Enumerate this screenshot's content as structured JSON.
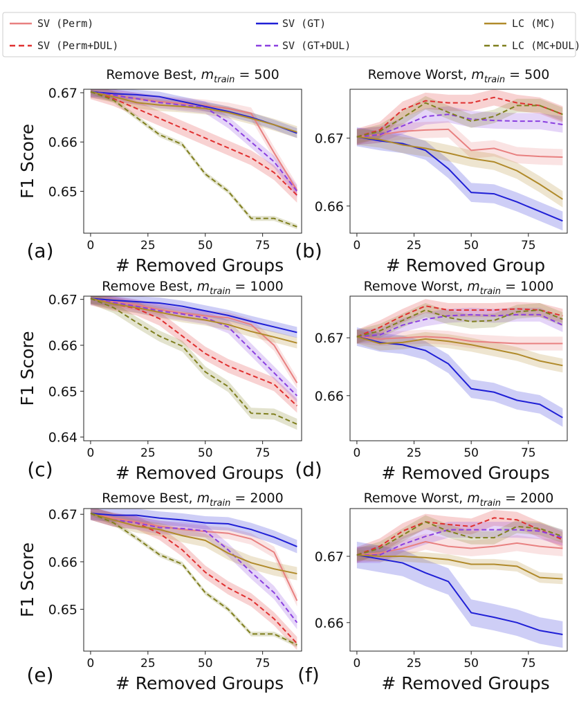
{
  "legend": [
    {
      "label": "SV (Perm)",
      "color": "#e88080",
      "dash": false
    },
    {
      "label": "SV (Perm+DUL)",
      "color": "#e03030",
      "dash": true
    },
    {
      "label": "SV (GT)",
      "color": "#1f1fd6",
      "dash": false
    },
    {
      "label": "SV (GT+DUL)",
      "color": "#8a3fe0",
      "dash": true
    },
    {
      "label": "LC (MC)",
      "color": "#b08a2a",
      "dash": false
    },
    {
      "label": "LC (MC+DUL)",
      "color": "#7f7f1e",
      "dash": true
    }
  ],
  "chart_data": [
    {
      "type": "line",
      "panel": "(a)",
      "title": "Remove Best, m_train = 500",
      "title_prefix": "Remove Best,",
      "title_m": "m",
      "title_sub": "train",
      "title_suffix": " = 500",
      "xlabel": "# Removed Groups",
      "ylabel": "F1 Score",
      "xlim": [
        -3,
        92
      ],
      "ylim": [
        0.6415,
        0.6707
      ],
      "xticks": [
        0,
        25,
        50,
        75
      ],
      "yticks": [
        0.65,
        0.66,
        0.67
      ],
      "ytick_labels": [
        "0.65",
        "0.66",
        "0.67"
      ],
      "x": [
        0,
        10,
        20,
        30,
        40,
        50,
        60,
        70,
        80,
        90
      ],
      "series": [
        {
          "name": "SV (Perm)",
          "values": [
            0.6702,
            0.6695,
            0.6688,
            0.6682,
            0.6678,
            0.6674,
            0.6668,
            0.6658,
            0.6578,
            0.6502
          ],
          "band": 0.0012
        },
        {
          "name": "SV (Perm+DUL)",
          "values": [
            0.6702,
            0.6688,
            0.6668,
            0.6648,
            0.6628,
            0.6608,
            0.6588,
            0.6568,
            0.6538,
            0.6492
          ],
          "band": 0.0015
        },
        {
          "name": "SV (GT)",
          "values": [
            0.6702,
            0.6698,
            0.6696,
            0.6692,
            0.6682,
            0.6672,
            0.6662,
            0.665,
            0.6635,
            0.6618
          ],
          "band": 0.001
        },
        {
          "name": "SV (GT+DUL)",
          "values": [
            0.6702,
            0.6695,
            0.6688,
            0.668,
            0.6675,
            0.667,
            0.664,
            0.66,
            0.656,
            0.65
          ],
          "band": 0.0012
        },
        {
          "name": "LC (MC)",
          "values": [
            0.6702,
            0.6692,
            0.668,
            0.6675,
            0.6672,
            0.6668,
            0.666,
            0.6648,
            0.6635,
            0.662
          ],
          "band": 0.0012
        },
        {
          "name": "LC (MC+DUL)",
          "values": [
            0.6702,
            0.6685,
            0.665,
            0.6615,
            0.6595,
            0.6535,
            0.65,
            0.6445,
            0.6445,
            0.6428
          ],
          "band": 0.0005
        }
      ]
    },
    {
      "type": "line",
      "panel": "(b)",
      "title": "Remove Worst, m_train = 500",
      "title_prefix": "Remove Worst,",
      "title_m": "m",
      "title_sub": "train",
      "title_suffix": " = 500",
      "xlabel": "# Removed Group",
      "ylabel": "",
      "xlim": [
        -3,
        92
      ],
      "ylim": [
        0.656,
        0.6772
      ],
      "xticks": [
        0,
        25,
        50,
        75
      ],
      "yticks": [
        0.66,
        0.67
      ],
      "ytick_labels": [
        "0.66",
        "0.67"
      ],
      "x": [
        0,
        10,
        20,
        30,
        40,
        50,
        60,
        70,
        80,
        90
      ],
      "series": [
        {
          "name": "SV (Perm)",
          "values": [
            0.6702,
            0.6705,
            0.671,
            0.6712,
            0.6713,
            0.6682,
            0.6685,
            0.6675,
            0.6673,
            0.6672
          ],
          "band": 0.0012
        },
        {
          "name": "SV (Perm+DUL)",
          "values": [
            0.6702,
            0.6712,
            0.6742,
            0.6755,
            0.6752,
            0.6752,
            0.676,
            0.6752,
            0.6748,
            0.6735
          ],
          "band": 0.0012
        },
        {
          "name": "SV (GT)",
          "values": [
            0.6702,
            0.6696,
            0.6692,
            0.6682,
            0.6655,
            0.662,
            0.6618,
            0.6606,
            0.6592,
            0.6578
          ],
          "band": 0.0014
        },
        {
          "name": "SV (GT+DUL)",
          "values": [
            0.6702,
            0.6705,
            0.6718,
            0.6732,
            0.6735,
            0.6728,
            0.6726,
            0.6725,
            0.6725,
            0.672
          ],
          "band": 0.0012
        },
        {
          "name": "LC (MC)",
          "values": [
            0.6702,
            0.6698,
            0.669,
            0.6685,
            0.6678,
            0.667,
            0.6665,
            0.6652,
            0.6632,
            0.661
          ],
          "band": 0.0012
        },
        {
          "name": "LC (MC+DUL)",
          "values": [
            0.6702,
            0.671,
            0.673,
            0.6752,
            0.6738,
            0.6725,
            0.6732,
            0.6748,
            0.6748,
            0.6735
          ],
          "band": 0.001
        }
      ]
    },
    {
      "type": "line",
      "panel": "(c)",
      "title": "Remove Best, m_train = 1000",
      "title_prefix": "Remove Best,",
      "title_m": "m",
      "title_sub": "train",
      "title_suffix": " = 1000",
      "xlabel": "# Removed Groups",
      "ylabel": "F1 Score",
      "xlim": [
        -3,
        92
      ],
      "ylim": [
        0.6392,
        0.6707
      ],
      "xticks": [
        0,
        25,
        50,
        75
      ],
      "yticks": [
        0.64,
        0.65,
        0.66,
        0.67
      ],
      "ytick_labels": [
        "0.64",
        "0.65",
        "0.66",
        "0.67"
      ],
      "x": [
        0,
        10,
        20,
        30,
        40,
        50,
        60,
        70,
        80,
        90
      ],
      "series": [
        {
          "name": "SV (Perm)",
          "values": [
            0.6702,
            0.6695,
            0.6688,
            0.6678,
            0.667,
            0.6664,
            0.666,
            0.6645,
            0.66,
            0.6518
          ],
          "band": 0.0012
        },
        {
          "name": "SV (Perm+DUL)",
          "values": [
            0.6702,
            0.669,
            0.668,
            0.6658,
            0.662,
            0.6582,
            0.6555,
            0.6535,
            0.6515,
            0.6468
          ],
          "band": 0.0015
        },
        {
          "name": "SV (GT)",
          "values": [
            0.6702,
            0.6698,
            0.6695,
            0.6692,
            0.6685,
            0.6675,
            0.6665,
            0.6652,
            0.664,
            0.6628
          ],
          "band": 0.0012
        },
        {
          "name": "SV (GT+DUL)",
          "values": [
            0.6702,
            0.6693,
            0.6685,
            0.6675,
            0.6668,
            0.666,
            0.664,
            0.659,
            0.654,
            0.649
          ],
          "band": 0.0014
        },
        {
          "name": "LC (MC)",
          "values": [
            0.6702,
            0.669,
            0.6682,
            0.6672,
            0.6662,
            0.6655,
            0.6645,
            0.663,
            0.6618,
            0.6605
          ],
          "band": 0.0012
        },
        {
          "name": "LC (MC+DUL)",
          "values": [
            0.6702,
            0.6682,
            0.665,
            0.662,
            0.6598,
            0.6542,
            0.651,
            0.6452,
            0.645,
            0.6428
          ],
          "band": 0.0012
        }
      ]
    },
    {
      "type": "line",
      "panel": "(d)",
      "title": "Remove Worst, m_train = 1000",
      "title_prefix": "Remove Worst,",
      "title_m": "m",
      "title_sub": "train",
      "title_suffix": " = 1000",
      "xlabel": "# Removed Groups",
      "ylabel": "",
      "xlim": [
        -3,
        92
      ],
      "ylim": [
        0.6522,
        0.6772
      ],
      "xticks": [
        0,
        25,
        50,
        75
      ],
      "yticks": [
        0.66,
        0.67
      ],
      "ytick_labels": [
        "0.66",
        "0.67"
      ],
      "x": [
        0,
        10,
        20,
        30,
        40,
        50,
        60,
        70,
        80,
        90
      ],
      "series": [
        {
          "name": "SV (Perm)",
          "values": [
            0.6702,
            0.6698,
            0.67,
            0.6702,
            0.67,
            0.6694,
            0.6692,
            0.669,
            0.669,
            0.669
          ],
          "band": 0.0012
        },
        {
          "name": "SV (Perm+DUL)",
          "values": [
            0.6702,
            0.6718,
            0.6738,
            0.6755,
            0.6748,
            0.6748,
            0.6748,
            0.675,
            0.6748,
            0.6738
          ],
          "band": 0.0012
        },
        {
          "name": "SV (GT)",
          "values": [
            0.6702,
            0.6692,
            0.6688,
            0.6678,
            0.6655,
            0.6612,
            0.6606,
            0.6592,
            0.6585,
            0.6562
          ],
          "band": 0.0016
        },
        {
          "name": "SV (GT+DUL)",
          "values": [
            0.6702,
            0.6705,
            0.6722,
            0.6732,
            0.6738,
            0.674,
            0.6738,
            0.674,
            0.674,
            0.6722
          ],
          "band": 0.0012
        },
        {
          "name": "LC (MC)",
          "values": [
            0.6702,
            0.669,
            0.6692,
            0.6698,
            0.6694,
            0.6688,
            0.668,
            0.6672,
            0.666,
            0.6652
          ],
          "band": 0.0012
        },
        {
          "name": "LC (MC+DUL)",
          "values": [
            0.6702,
            0.6712,
            0.673,
            0.6748,
            0.6735,
            0.6728,
            0.673,
            0.6745,
            0.6748,
            0.6732
          ],
          "band": 0.0012
        }
      ]
    },
    {
      "type": "line",
      "panel": "(e)",
      "title": "Remove Best, m_train = 2000",
      "title_prefix": "Remove Best,",
      "title_m": "m",
      "title_sub": "train",
      "title_suffix": " = 2000",
      "xlabel": "# Removed Groups",
      "ylabel": "F1 Score",
      "xlim": [
        -3,
        92
      ],
      "ylim": [
        0.6412,
        0.6712
      ],
      "xticks": [
        0,
        25,
        50,
        75
      ],
      "yticks": [
        0.65,
        0.66,
        0.67
      ],
      "ytick_labels": [
        "0.65",
        "0.66",
        "0.67"
      ],
      "x": [
        0,
        10,
        20,
        30,
        40,
        50,
        60,
        70,
        80,
        90
      ],
      "series": [
        {
          "name": "SV (Perm)",
          "values": [
            0.6702,
            0.6692,
            0.6684,
            0.6675,
            0.6668,
            0.6664,
            0.666,
            0.6648,
            0.662,
            0.6518
          ],
          "band": 0.0012
        },
        {
          "name": "SV (Perm+DUL)",
          "values": [
            0.6702,
            0.6688,
            0.6682,
            0.666,
            0.6625,
            0.6578,
            0.6545,
            0.652,
            0.648,
            0.6428
          ],
          "band": 0.0014
        },
        {
          "name": "SV (GT)",
          "values": [
            0.6702,
            0.6698,
            0.6698,
            0.6692,
            0.6688,
            0.6682,
            0.668,
            0.6668,
            0.6652,
            0.6632
          ],
          "band": 0.0014
        },
        {
          "name": "SV (GT+DUL)",
          "values": [
            0.6702,
            0.6688,
            0.6682,
            0.6672,
            0.667,
            0.6665,
            0.6625,
            0.6578,
            0.6535,
            0.6472
          ],
          "band": 0.0014
        },
        {
          "name": "LC (MC)",
          "values": [
            0.6702,
            0.6688,
            0.6675,
            0.6668,
            0.6655,
            0.6645,
            0.6618,
            0.6598,
            0.6585,
            0.6575
          ],
          "band": 0.0014
        },
        {
          "name": "LC (MC+DUL)",
          "values": [
            0.6702,
            0.6682,
            0.665,
            0.6615,
            0.6595,
            0.6535,
            0.65,
            0.6448,
            0.6448,
            0.6425
          ],
          "band": 0.0005
        }
      ]
    },
    {
      "type": "line",
      "panel": "(f)",
      "title": "Remove Worst, m_train = 2000",
      "title_prefix": "Remove Worst,",
      "title_m": "m",
      "title_sub": "train",
      "title_suffix": " = 2000",
      "xlabel": "# Removed Groups",
      "ylabel": "",
      "xlim": [
        -3,
        92
      ],
      "ylim": [
        0.6557,
        0.6772
      ],
      "xticks": [
        0,
        25,
        50,
        75
      ],
      "yticks": [
        0.66,
        0.67
      ],
      "ytick_labels": [
        "0.66",
        "0.67"
      ],
      "x": [
        0,
        10,
        20,
        30,
        40,
        50,
        60,
        70,
        80,
        90
      ],
      "series": [
        {
          "name": "SV (Perm)",
          "values": [
            0.6702,
            0.6705,
            0.6712,
            0.6722,
            0.6715,
            0.6712,
            0.6715,
            0.672,
            0.6715,
            0.6712
          ],
          "band": 0.0012
        },
        {
          "name": "SV (Perm+DUL)",
          "values": [
            0.6702,
            0.6715,
            0.6738,
            0.6752,
            0.6748,
            0.6745,
            0.6758,
            0.6755,
            0.674,
            0.6725
          ],
          "band": 0.0012
        },
        {
          "name": "SV (GT)",
          "values": [
            0.6702,
            0.6696,
            0.669,
            0.6675,
            0.6662,
            0.6615,
            0.6608,
            0.66,
            0.6588,
            0.6582
          ],
          "band": 0.002
        },
        {
          "name": "SV (GT+DUL)",
          "values": [
            0.6702,
            0.6702,
            0.6718,
            0.673,
            0.674,
            0.674,
            0.674,
            0.674,
            0.6738,
            0.6728
          ],
          "band": 0.0012
        },
        {
          "name": "LC (MC)",
          "values": [
            0.6702,
            0.67,
            0.67,
            0.6698,
            0.6695,
            0.6688,
            0.6688,
            0.6685,
            0.6668,
            0.6666
          ],
          "band": 0.0008
        },
        {
          "name": "LC (MC+DUL)",
          "values": [
            0.6702,
            0.6712,
            0.6732,
            0.6752,
            0.6738,
            0.6728,
            0.6728,
            0.6745,
            0.6742,
            0.673
          ],
          "band": 0.001
        }
      ]
    }
  ]
}
